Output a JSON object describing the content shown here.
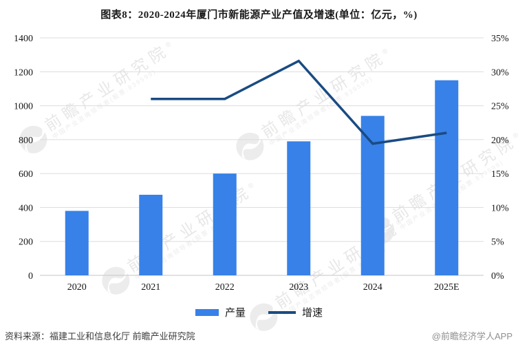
{
  "title": "图表8：2020-2024年厦门市新能源产业产值及增速(单位：亿元，%)",
  "chart_data": {
    "type": "bar+line",
    "categories": [
      "2020",
      "2021",
      "2022",
      "2023",
      "2024",
      "2025E"
    ],
    "series": [
      {
        "name": "产量",
        "chart": "bar",
        "axis": "left",
        "unit": "亿元",
        "color": "#3781E8",
        "values": [
          380,
          475,
          600,
          790,
          940,
          1150
        ]
      },
      {
        "name": "增速",
        "chart": "line",
        "axis": "right",
        "unit": "%",
        "color": "#1A4B82",
        "values": [
          null,
          26,
          26,
          31.6,
          19.4,
          21
        ]
      }
    ],
    "title": "图表8：2020-2024年厦门市新能源产业产值及增速(单位：亿元，%)",
    "xlabel": "",
    "ylabel_left": "亿元",
    "ylabel_right": "%",
    "left_axis": {
      "min": 0,
      "max": 1400,
      "step": 200,
      "ticks": [
        "0",
        "200",
        "400",
        "600",
        "800",
        "1000",
        "1200",
        "1400"
      ]
    },
    "right_axis": {
      "min": 0,
      "max": 35,
      "step": 5,
      "ticks": [
        "0%",
        "5%",
        "10%",
        "15%",
        "20%",
        "25%",
        "30%",
        "35%"
      ]
    },
    "grid": true,
    "legend_position": "bottom"
  },
  "footer": {
    "source": "资料来源：福建工业和信息化厅 前瞻产业研究院",
    "credit": "@前瞻经济学人APP"
  },
  "watermark": {
    "text": "前瞻产业研究院",
    "reg": "®",
    "subtext": "中国产业咨询领导者(股票:839599)"
  }
}
